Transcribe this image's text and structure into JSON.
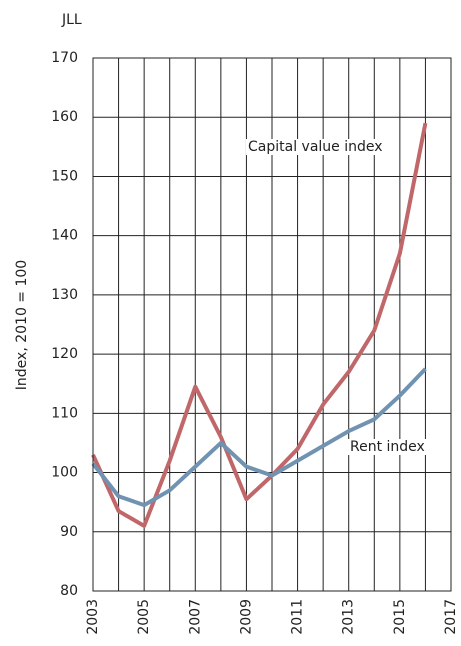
{
  "chart_data": {
    "type": "line",
    "source": "JLL",
    "ylabel": "Index, 2010 = 100",
    "x": [
      2003,
      2004,
      2005,
      2006,
      2007,
      2008,
      2009,
      2010,
      2011,
      2012,
      2013,
      2014,
      2015,
      2016
    ],
    "series": [
      {
        "name": "Capital value index",
        "color": "#c0676a",
        "values": [
          103,
          93.5,
          91,
          102,
          114.5,
          106,
          95.5,
          99.5,
          104,
          111.5,
          117,
          124,
          137,
          159
        ]
      },
      {
        "name": "Rent index",
        "color": "#7193b2",
        "values": [
          101.5,
          96,
          94.5,
          97,
          101,
          105,
          101,
          99.5,
          102,
          104.5,
          107,
          109,
          113,
          117.5
        ]
      }
    ],
    "xlim": [
      2003,
      2017
    ],
    "xticks": [
      2003,
      2005,
      2007,
      2009,
      2011,
      2013,
      2015,
      2017
    ],
    "xgrid_minor": [
      2004,
      2006,
      2008,
      2010,
      2012,
      2014,
      2016
    ],
    "ylim": [
      80,
      170
    ],
    "yticks": [
      80,
      90,
      100,
      110,
      120,
      130,
      140,
      150,
      160,
      170
    ],
    "grid": true
  }
}
